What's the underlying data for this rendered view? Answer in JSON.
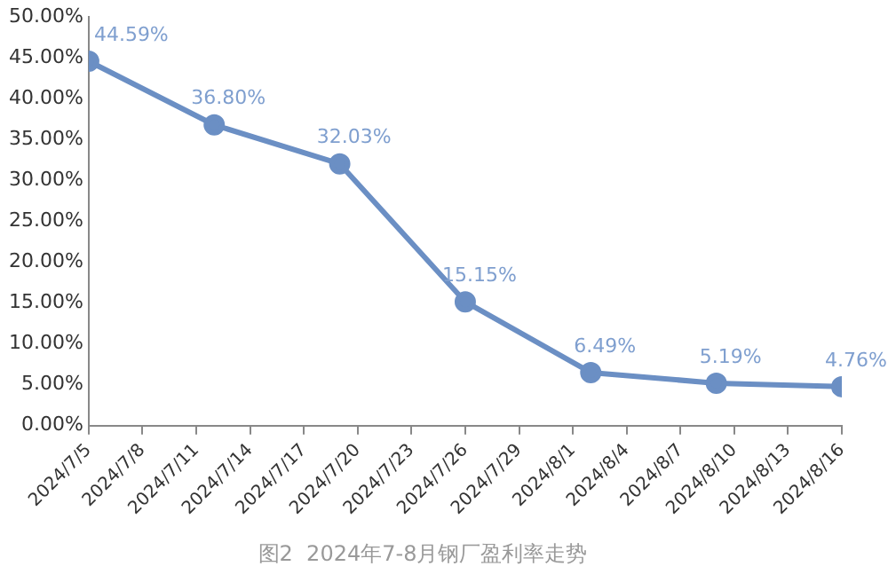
{
  "chart_data": {
    "type": "line",
    "title": "图2  2024年7-8月钢厂盈利率走势",
    "x": [
      "2024-07-05",
      "2024-07-12",
      "2024-07-19",
      "2024-07-26",
      "2024-08-02",
      "2024-08-09",
      "2024-08-16"
    ],
    "values": [
      44.59,
      36.8,
      32.03,
      15.15,
      6.49,
      5.19,
      4.76
    ],
    "value_labels": [
      "44.59%",
      "36.80%",
      "32.03%",
      "15.15%",
      "6.49%",
      "5.19%",
      "4.76%"
    ],
    "color": "#6b8fc4",
    "marker": "circle",
    "line_style": "solid",
    "grid": false,
    "legend": false,
    "xlim": [
      "2024-07-05",
      "2024-08-16"
    ],
    "xticks": [
      {
        "value": "2024-07-05",
        "label": "2024/7/5"
      },
      {
        "value": "2024-07-08",
        "label": "2024/7/8"
      },
      {
        "value": "2024-07-11",
        "label": "2024/7/11"
      },
      {
        "value": "2024-07-14",
        "label": "2024/7/14"
      },
      {
        "value": "2024-07-17",
        "label": "2024/7/17"
      },
      {
        "value": "2024-07-20",
        "label": "2024/7/20"
      },
      {
        "value": "2024-07-23",
        "label": "2024/7/23"
      },
      {
        "value": "2024-07-26",
        "label": "2024/7/26"
      },
      {
        "value": "2024-07-29",
        "label": "2024/7/29"
      },
      {
        "value": "2024-08-01",
        "label": "2024/8/1"
      },
      {
        "value": "2024-08-04",
        "label": "2024/8/4"
      },
      {
        "value": "2024-08-07",
        "label": "2024/8/7"
      },
      {
        "value": "2024-08-10",
        "label": "2024/8/10"
      },
      {
        "value": "2024-08-13",
        "label": "2024/8/13"
      },
      {
        "value": "2024-08-16",
        "label": "2024/8/16"
      }
    ],
    "ylim": [
      0,
      50
    ],
    "yticks": [
      {
        "value": 0,
        "label": "0.00%"
      },
      {
        "value": 5,
        "label": "5.00%"
      },
      {
        "value": 10,
        "label": "10.00%"
      },
      {
        "value": 15,
        "label": "15.00%"
      },
      {
        "value": 20,
        "label": "20.00%"
      },
      {
        "value": 25,
        "label": "25.00%"
      },
      {
        "value": 30,
        "label": "30.00%"
      },
      {
        "value": 35,
        "label": "35.00%"
      },
      {
        "value": 40,
        "label": "40.00%"
      },
      {
        "value": 45,
        "label": "45.00%"
      },
      {
        "value": 50,
        "label": "50.00%"
      }
    ]
  }
}
